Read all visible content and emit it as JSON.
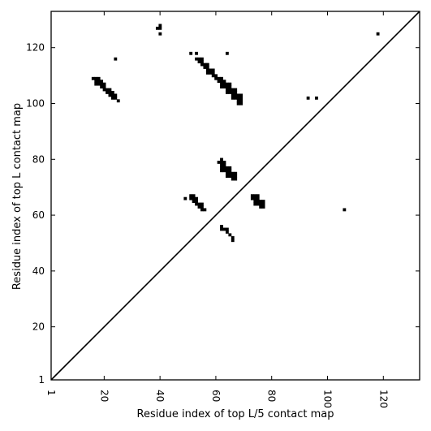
{
  "chart_data": {
    "type": "heatmap",
    "title": "",
    "xlabel": "Residue index of top L/5 contact map",
    "ylabel": "Residue index of top L contact map",
    "xlim": [
      1,
      133
    ],
    "ylim": [
      1,
      133
    ],
    "x_ticks": [
      1,
      20,
      40,
      60,
      80,
      100,
      120
    ],
    "y_ticks": [
      1,
      20,
      40,
      60,
      80,
      100,
      120
    ],
    "x_tick_rotation": 90,
    "grid": false,
    "diagonal_line": true,
    "cell_color": "#000000",
    "contacts": [
      [
        39,
        127
      ],
      [
        40,
        127
      ],
      [
        40,
        128
      ],
      [
        40,
        125
      ],
      [
        24,
        116
      ],
      [
        51,
        118
      ],
      [
        53,
        118
      ],
      [
        64,
        118
      ],
      [
        118,
        125
      ],
      [
        16,
        109
      ],
      [
        17,
        109
      ],
      [
        18,
        109
      ],
      [
        17,
        108
      ],
      [
        18,
        108
      ],
      [
        19,
        108
      ],
      [
        17,
        107
      ],
      [
        18,
        107
      ],
      [
        19,
        107
      ],
      [
        20,
        107
      ],
      [
        19,
        106
      ],
      [
        20,
        106
      ],
      [
        20,
        105
      ],
      [
        21,
        105
      ],
      [
        22,
        105
      ],
      [
        21,
        104
      ],
      [
        22,
        104
      ],
      [
        23,
        104
      ],
      [
        22,
        103
      ],
      [
        23,
        103
      ],
      [
        24,
        103
      ],
      [
        23,
        102
      ],
      [
        24,
        102
      ],
      [
        25,
        101
      ],
      [
        53,
        116
      ],
      [
        54,
        116
      ],
      [
        55,
        116
      ],
      [
        54,
        115
      ],
      [
        55,
        115
      ],
      [
        55,
        114
      ],
      [
        56,
        114
      ],
      [
        57,
        114
      ],
      [
        56,
        113
      ],
      [
        57,
        113
      ],
      [
        57,
        112
      ],
      [
        58,
        112
      ],
      [
        59,
        112
      ],
      [
        57,
        111
      ],
      [
        58,
        111
      ],
      [
        59,
        111
      ],
      [
        59,
        110
      ],
      [
        60,
        110
      ],
      [
        60,
        109
      ],
      [
        61,
        109
      ],
      [
        62,
        109
      ],
      [
        61,
        108
      ],
      [
        62,
        108
      ],
      [
        63,
        108
      ],
      [
        62,
        107
      ],
      [
        63,
        107
      ],
      [
        64,
        107
      ],
      [
        65,
        107
      ],
      [
        62,
        106
      ],
      [
        63,
        106
      ],
      [
        64,
        106
      ],
      [
        65,
        106
      ],
      [
        64,
        105
      ],
      [
        65,
        105
      ],
      [
        66,
        105
      ],
      [
        67,
        105
      ],
      [
        64,
        104
      ],
      [
        65,
        104
      ],
      [
        66,
        104
      ],
      [
        67,
        104
      ],
      [
        66,
        103
      ],
      [
        67,
        103
      ],
      [
        68,
        103
      ],
      [
        69,
        103
      ],
      [
        66,
        102
      ],
      [
        67,
        102
      ],
      [
        68,
        102
      ],
      [
        69,
        102
      ],
      [
        68,
        101
      ],
      [
        69,
        101
      ],
      [
        68,
        100
      ],
      [
        69,
        100
      ],
      [
        93,
        102
      ],
      [
        96,
        102
      ],
      [
        62,
        80
      ],
      [
        61,
        79
      ],
      [
        62,
        79
      ],
      [
        63,
        79
      ],
      [
        62,
        78
      ],
      [
        63,
        78
      ],
      [
        62,
        77
      ],
      [
        63,
        77
      ],
      [
        64,
        77
      ],
      [
        65,
        77
      ],
      [
        62,
        76
      ],
      [
        63,
        76
      ],
      [
        64,
        76
      ],
      [
        65,
        76
      ],
      [
        64,
        75
      ],
      [
        65,
        75
      ],
      [
        66,
        75
      ],
      [
        67,
        75
      ],
      [
        64,
        74
      ],
      [
        65,
        74
      ],
      [
        66,
        74
      ],
      [
        67,
        74
      ],
      [
        66,
        73
      ],
      [
        67,
        73
      ],
      [
        73,
        67
      ],
      [
        74,
        67
      ],
      [
        75,
        67
      ],
      [
        73,
        66
      ],
      [
        74,
        66
      ],
      [
        75,
        66
      ],
      [
        74,
        65
      ],
      [
        75,
        65
      ],
      [
        76,
        65
      ],
      [
        77,
        65
      ],
      [
        74,
        64
      ],
      [
        75,
        64
      ],
      [
        76,
        64
      ],
      [
        77,
        64
      ],
      [
        76,
        63
      ],
      [
        77,
        63
      ],
      [
        49,
        66
      ],
      [
        51,
        67
      ],
      [
        52,
        67
      ],
      [
        51,
        66
      ],
      [
        52,
        66
      ],
      [
        53,
        66
      ],
      [
        52,
        65
      ],
      [
        53,
        65
      ],
      [
        53,
        64
      ],
      [
        54,
        64
      ],
      [
        55,
        64
      ],
      [
        54,
        63
      ],
      [
        55,
        63
      ],
      [
        55,
        62
      ],
      [
        56,
        62
      ],
      [
        106,
        62
      ],
      [
        62,
        56
      ],
      [
        62,
        55
      ],
      [
        63,
        55
      ],
      [
        64,
        55
      ],
      [
        64,
        54
      ],
      [
        65,
        53
      ],
      [
        66,
        52
      ],
      [
        66,
        51
      ]
    ]
  }
}
